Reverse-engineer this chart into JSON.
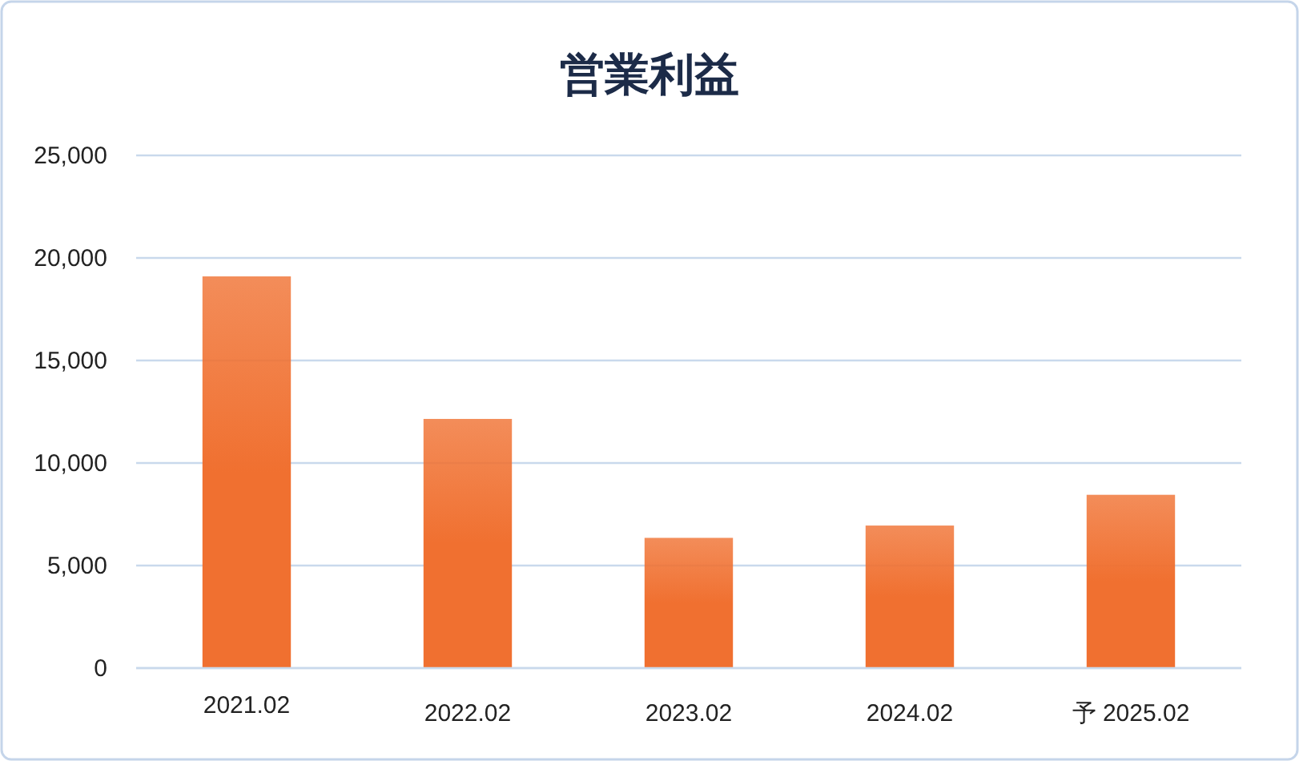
{
  "chart_data": {
    "type": "bar",
    "title": "営業利益",
    "categories": [
      "2021.02",
      "2022.02",
      "2023.02",
      "2024.02",
      "予 2025.02"
    ],
    "values": [
      19100,
      12150,
      6350,
      6950,
      8450
    ],
    "color": "#f07030",
    "ylim": [
      0,
      25000
    ],
    "yticks": [
      {
        "value": 0,
        "label": "0"
      },
      {
        "value": 5000,
        "label": "5,000"
      },
      {
        "value": 10000,
        "label": "10,000"
      },
      {
        "value": 15000,
        "label": "15,000"
      },
      {
        "value": 20000,
        "label": "20,000"
      },
      {
        "value": 25000,
        "label": "25,000"
      }
    ],
    "grid": "y"
  }
}
